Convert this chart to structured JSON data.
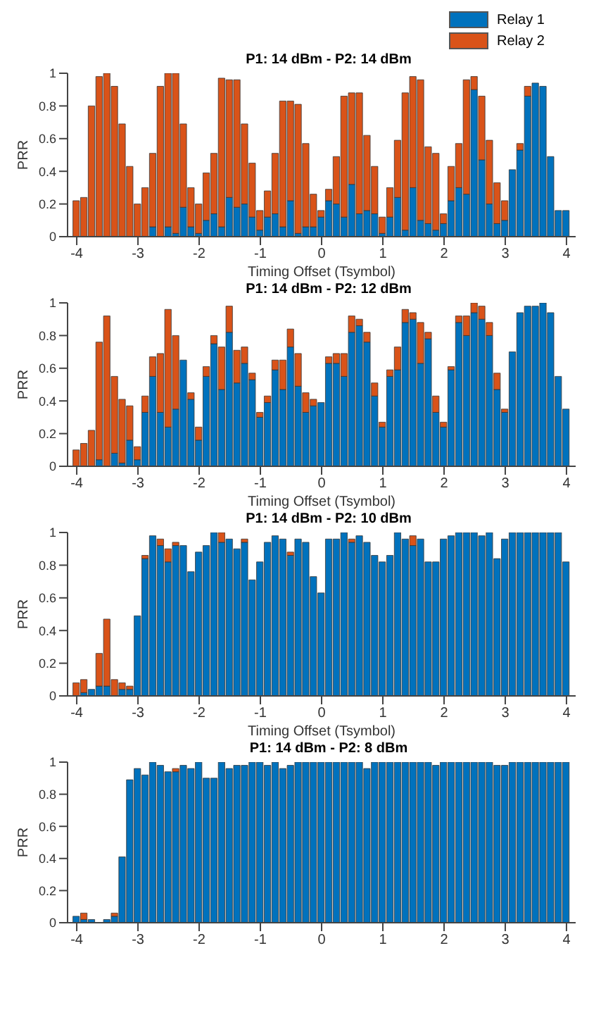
{
  "chart_data": [
    {
      "type": "bar",
      "title": "P1: 14 dBm - P2: 14 dBm",
      "xlabel": "Timing Offset (Tsymbol)",
      "ylabel": "PRR",
      "stacked": true,
      "legend": "top right",
      "xlim": [
        -4.15,
        4.15
      ],
      "xticks": [
        -4,
        -3,
        -2,
        -1,
        0,
        1,
        2,
        3,
        4
      ],
      "ylim": [
        0,
        1
      ],
      "yticks": [
        0,
        0.2,
        0.4,
        0.6,
        0.8,
        1
      ],
      "x": [
        -4,
        -3.875,
        -3.75,
        -3.625,
        -3.5,
        -3.375,
        -3.25,
        -3.125,
        -3,
        -2.875,
        -2.75,
        -2.625,
        -2.5,
        -2.375,
        -2.25,
        -2.125,
        -2,
        -1.875,
        -1.75,
        -1.625,
        -1.5,
        -1.375,
        -1.25,
        -1.125,
        -1,
        -0.875,
        -0.75,
        -0.625,
        -0.5,
        -0.375,
        -0.25,
        -0.125,
        0,
        0.125,
        0.25,
        0.375,
        0.5,
        0.625,
        0.75,
        0.875,
        1,
        1.125,
        1.25,
        1.375,
        1.5,
        1.625,
        1.75,
        1.875,
        2,
        2.125,
        2.25,
        2.375,
        2.5,
        2.625,
        2.75,
        2.875,
        3,
        3.125,
        3.25,
        3.375,
        3.5,
        3.625,
        3.75,
        3.875,
        4
      ],
      "series": [
        {
          "name": "Relay 1",
          "color": "#0072bd",
          "values": [
            0,
            0,
            0,
            0,
            0,
            0,
            0,
            0,
            0,
            0,
            0.06,
            0,
            0.06,
            0.02,
            0.18,
            0.06,
            0.02,
            0.1,
            0.14,
            0.06,
            0.24,
            0.18,
            0.2,
            0.12,
            0.04,
            0.12,
            0.14,
            0.06,
            0.22,
            0.02,
            0.06,
            0.06,
            0.12,
            0.22,
            0.2,
            0.12,
            0.32,
            0.14,
            0.16,
            0.14,
            0.02,
            0.12,
            0.24,
            0.04,
            0.3,
            0.1,
            0.08,
            0.04,
            0.08,
            0.22,
            0.3,
            0.26,
            0.9,
            0.47,
            0.2,
            0.08,
            0.1,
            0.41,
            0.53,
            0.86,
            0.94,
            0.92,
            0.49,
            0.16,
            0.16
          ]
        },
        {
          "name": "Relay 2",
          "color": "#d95319",
          "values": [
            0.22,
            0.24,
            0.8,
            0.98,
            1.0,
            0.92,
            0.69,
            0.43,
            0.2,
            0.3,
            0.45,
            0.92,
            0.94,
            0.98,
            0.51,
            0.24,
            0.18,
            0.29,
            0.37,
            0.91,
            0.72,
            0.78,
            0.49,
            0.33,
            0.12,
            0.16,
            0.37,
            0.77,
            0.61,
            0.79,
            0.51,
            0.2,
            0.04,
            0.07,
            0.29,
            0.74,
            0.56,
            0.74,
            0.46,
            0.29,
            0.1,
            0.18,
            0.35,
            0.84,
            0.68,
            0.86,
            0.47,
            0.47,
            0.06,
            0.21,
            0.27,
            0.7,
            0.08,
            0.39,
            0.39,
            0.25,
            0.12,
            0,
            0.04,
            0.06,
            0,
            0,
            0,
            0,
            0
          ]
        }
      ]
    },
    {
      "type": "bar",
      "title": "P1: 14 dBm - P2: 12 dBm",
      "xlabel": "Timing Offset (Tsymbol)",
      "ylabel": "PRR",
      "stacked": true,
      "xlim": [
        -4.15,
        4.15
      ],
      "xticks": [
        -4,
        -3,
        -2,
        -1,
        0,
        1,
        2,
        3,
        4
      ],
      "ylim": [
        0,
        1
      ],
      "yticks": [
        0,
        0.2,
        0.4,
        0.6,
        0.8,
        1
      ],
      "x": [
        -4,
        -3.875,
        -3.75,
        -3.625,
        -3.5,
        -3.375,
        -3.25,
        -3.125,
        -3,
        -2.875,
        -2.75,
        -2.625,
        -2.5,
        -2.375,
        -2.25,
        -2.125,
        -2,
        -1.875,
        -1.75,
        -1.625,
        -1.5,
        -1.375,
        -1.25,
        -1.125,
        -1,
        -0.875,
        -0.75,
        -0.625,
        -0.5,
        -0.375,
        -0.25,
        -0.125,
        0,
        0.125,
        0.25,
        0.375,
        0.5,
        0.625,
        0.75,
        0.875,
        1,
        1.125,
        1.25,
        1.375,
        1.5,
        1.625,
        1.75,
        1.875,
        2,
        2.125,
        2.25,
        2.375,
        2.5,
        2.625,
        2.75,
        2.875,
        3,
        3.125,
        3.25,
        3.375,
        3.5,
        3.625,
        3.75,
        3.875,
        4
      ],
      "series": [
        {
          "color": "#0072bd",
          "values": [
            0,
            0,
            0,
            0.04,
            0,
            0.08,
            0.02,
            0.16,
            0.04,
            0.33,
            0.55,
            0.33,
            0.24,
            0.35,
            0.65,
            0.41,
            0.16,
            0.55,
            0.75,
            0.47,
            0.82,
            0.51,
            0.63,
            0.53,
            0.3,
            0.39,
            0.59,
            0.47,
            0.73,
            0.49,
            0.33,
            0.37,
            0.39,
            0.63,
            0.63,
            0.55,
            0.82,
            0.86,
            0.76,
            0.43,
            0.24,
            0.55,
            0.59,
            0.88,
            0.9,
            0.63,
            0.78,
            0.33,
            0.24,
            0.59,
            0.88,
            0.8,
            0.94,
            0.9,
            0.8,
            0.47,
            0.33,
            0.7,
            0.94,
            0.98,
            0.98,
            1.0,
            0.94,
            0.55,
            0.35
          ]
        },
        {
          "color": "#d95319",
          "values": [
            0.1,
            0.14,
            0.22,
            0.72,
            0.92,
            0.47,
            0.39,
            0.21,
            0.08,
            0.1,
            0.12,
            0.36,
            0.72,
            0.45,
            0,
            0.04,
            0.08,
            0.06,
            0.05,
            0.26,
            0.16,
            0.2,
            0.1,
            0.04,
            0.03,
            0.04,
            0.06,
            0.18,
            0.11,
            0.2,
            0.12,
            0.04,
            0,
            0.04,
            0.06,
            0.14,
            0.1,
            0.04,
            0.06,
            0.08,
            0.03,
            0.04,
            0.14,
            0.08,
            0.04,
            0.25,
            0.04,
            0.1,
            0.03,
            0.02,
            0.04,
            0.12,
            0.06,
            0.08,
            0.08,
            0.1,
            0.02,
            0,
            0,
            0,
            0,
            0,
            0,
            0,
            0
          ]
        }
      ]
    },
    {
      "type": "bar",
      "title": "P1: 14 dBm - P2: 10 dBm",
      "xlabel": "Timing Offset (Tsymbol)",
      "ylabel": "PRR",
      "stacked": true,
      "xlim": [
        -4.15,
        4.15
      ],
      "xticks": [
        -4,
        -3,
        -2,
        -1,
        0,
        1,
        2,
        3,
        4
      ],
      "ylim": [
        0,
        1
      ],
      "yticks": [
        0,
        0.2,
        0.4,
        0.6,
        0.8,
        1
      ],
      "x": [
        -4,
        -3.875,
        -3.75,
        -3.625,
        -3.5,
        -3.375,
        -3.25,
        -3.125,
        -3,
        -2.875,
        -2.75,
        -2.625,
        -2.5,
        -2.375,
        -2.25,
        -2.125,
        -2,
        -1.875,
        -1.75,
        -1.625,
        -1.5,
        -1.375,
        -1.25,
        -1.125,
        -1,
        -0.875,
        -0.75,
        -0.625,
        -0.5,
        -0.375,
        -0.25,
        -0.125,
        0,
        0.125,
        0.25,
        0.375,
        0.5,
        0.625,
        0.75,
        0.875,
        1,
        1.125,
        1.25,
        1.375,
        1.5,
        1.625,
        1.75,
        1.875,
        2,
        2.125,
        2.25,
        2.375,
        2.5,
        2.625,
        2.75,
        2.875,
        3,
        3.125,
        3.25,
        3.375,
        3.5,
        3.625,
        3.75,
        3.875,
        4
      ],
      "series": [
        {
          "color": "#0072bd",
          "values": [
            0,
            0.02,
            0.04,
            0.06,
            0.06,
            0,
            0.04,
            0.04,
            0.49,
            0.84,
            0.98,
            0.92,
            0.82,
            0.92,
            0.92,
            0.76,
            0.88,
            0.92,
            1.0,
            0.94,
            0.96,
            0.9,
            0.94,
            0.71,
            0.82,
            0.94,
            0.98,
            0.96,
            0.86,
            0.96,
            0.94,
            0.73,
            0.63,
            0.96,
            0.96,
            1.0,
            0.94,
            0.98,
            0.94,
            0.86,
            0.82,
            0.86,
            1.0,
            0.96,
            0.92,
            0.96,
            0.82,
            0.82,
            0.96,
            0.98,
            1.0,
            1.0,
            1.0,
            0.98,
            1.0,
            0.84,
            0.96,
            1.0,
            1.0,
            1.0,
            1.0,
            1.0,
            1.0,
            1.0,
            0.82
          ]
        },
        {
          "color": "#d95319",
          "values": [
            0.08,
            0.08,
            0,
            0.2,
            0.41,
            0.1,
            0.04,
            0.02,
            0,
            0.02,
            0,
            0.04,
            0.08,
            0.02,
            0,
            0,
            0,
            0,
            0,
            0.06,
            0,
            0,
            0.02,
            0,
            0,
            0,
            0,
            0,
            0.02,
            0,
            0,
            0,
            0,
            0,
            0,
            0,
            0.02,
            0,
            0,
            0,
            0,
            0,
            0,
            0,
            0.06,
            0,
            0,
            0,
            0,
            0,
            0,
            0,
            0,
            0,
            0,
            0,
            0,
            0,
            0,
            0,
            0,
            0,
            0,
            0,
            0
          ]
        }
      ]
    },
    {
      "type": "bar",
      "title": "P1: 14 dBm - P2: 8 dBm",
      "ylabel": "PRR",
      "stacked": true,
      "xlim": [
        -4.15,
        4.15
      ],
      "xticks": [
        -4,
        -3,
        -2,
        -1,
        0,
        1,
        2,
        3,
        4
      ],
      "ylim": [
        0,
        1
      ],
      "yticks": [
        0,
        0.2,
        0.4,
        0.6,
        0.8,
        1
      ],
      "x": [
        -4,
        -3.875,
        -3.75,
        -3.625,
        -3.5,
        -3.375,
        -3.25,
        -3.125,
        -3,
        -2.875,
        -2.75,
        -2.625,
        -2.5,
        -2.375,
        -2.25,
        -2.125,
        -2,
        -1.875,
        -1.75,
        -1.625,
        -1.5,
        -1.375,
        -1.25,
        -1.125,
        -1,
        -0.875,
        -0.75,
        -0.625,
        -0.5,
        -0.375,
        -0.25,
        -0.125,
        0,
        0.125,
        0.25,
        0.375,
        0.5,
        0.625,
        0.75,
        0.875,
        1,
        1.125,
        1.25,
        1.375,
        1.5,
        1.625,
        1.75,
        1.875,
        2,
        2.125,
        2.25,
        2.375,
        2.5,
        2.625,
        2.75,
        2.875,
        3,
        3.125,
        3.25,
        3.375,
        3.5,
        3.625,
        3.75,
        3.875,
        4
      ],
      "series": [
        {
          "color": "#0072bd",
          "values": [
            0.04,
            0.02,
            0.02,
            0,
            0.02,
            0.04,
            0.41,
            0.89,
            0.96,
            0.92,
            1.0,
            0.98,
            0.94,
            0.94,
            0.98,
            0.96,
            1.0,
            0.9,
            0.9,
            1.0,
            0.96,
            0.98,
            0.98,
            1.0,
            1.0,
            0.98,
            1.0,
            0.96,
            0.98,
            1.0,
            1.0,
            1.0,
            1.0,
            1.0,
            1.0,
            1.0,
            1.0,
            1.0,
            0.96,
            1.0,
            1.0,
            1.0,
            1.0,
            1.0,
            1.0,
            1.0,
            1.0,
            0.98,
            1.0,
            1.0,
            1.0,
            1.0,
            1.0,
            1.0,
            1.0,
            0.98,
            0.98,
            1.0,
            1.0,
            1.0,
            1.0,
            1.0,
            1.0,
            1.0,
            1.0
          ]
        },
        {
          "color": "#d95319",
          "values": [
            0,
            0.04,
            0,
            0,
            0,
            0.02,
            0,
            0,
            0,
            0,
            0,
            0,
            0,
            0.02,
            0,
            0,
            0,
            0,
            0,
            0,
            0,
            0,
            0,
            0,
            0,
            0,
            0,
            0,
            0,
            0,
            0,
            0,
            0,
            0,
            0,
            0,
            0,
            0,
            0,
            0,
            0,
            0,
            0,
            0,
            0,
            0,
            0,
            0,
            0,
            0,
            0,
            0,
            0,
            0,
            0,
            0,
            0,
            0,
            0,
            0,
            0,
            0,
            0,
            0,
            0
          ]
        }
      ]
    }
  ]
}
